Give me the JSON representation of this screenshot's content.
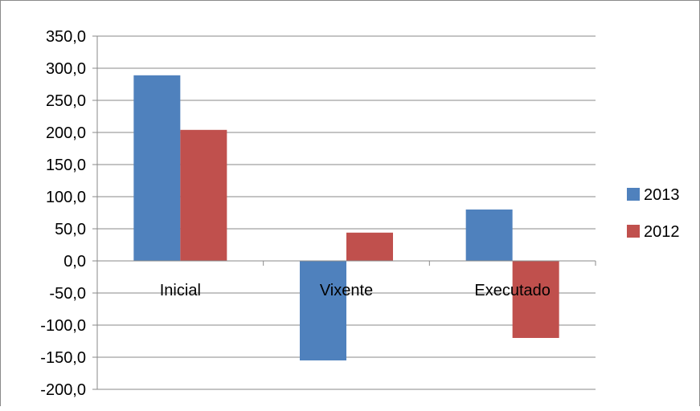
{
  "chart_data": {
    "type": "bar",
    "categories": [
      "Inicial",
      "Vixente",
      "Executado"
    ],
    "series": [
      {
        "name": "2013",
        "values": [
          289,
          -155,
          80
        ],
        "color": "#4f81bd"
      },
      {
        "name": "2012",
        "values": [
          204,
          44,
          -120
        ],
        "color": "#c0504d"
      }
    ],
    "ylim": [
      -200,
      350
    ],
    "yticks": [
      350,
      300,
      250,
      200,
      150,
      100,
      50,
      0,
      -50,
      -100,
      -150,
      -200
    ],
    "ytick_labels": [
      "350,0",
      "300,0",
      "250,0",
      "200,0",
      "150,0",
      "100,0",
      "50,0",
      "0,0",
      "-50,0",
      "-100,0",
      "-150,0",
      "-200,0"
    ],
    "grid": true,
    "legend_position": "right",
    "title": "",
    "xlabel": "",
    "ylabel": ""
  }
}
